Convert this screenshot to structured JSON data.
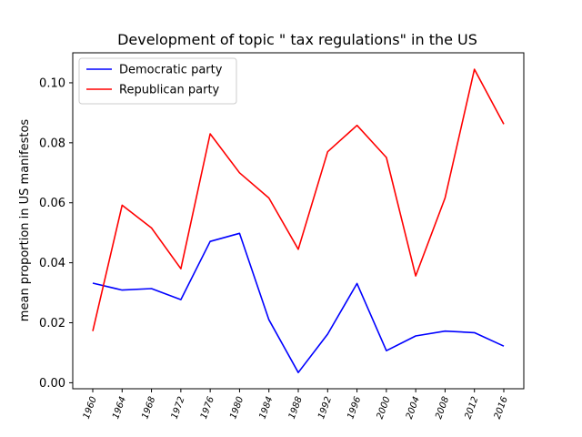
{
  "chart_data": {
    "type": "line",
    "title": "Development of topic \" tax regulations\" in the US",
    "xlabel": "",
    "ylabel": "mean proportion in US manifestos",
    "categories": [
      "1960",
      "1964",
      "1968",
      "1972",
      "1976",
      "1980",
      "1984",
      "1988",
      "1992",
      "1996",
      "2000",
      "2004",
      "2008",
      "2012",
      "2016"
    ],
    "ylim": [
      -0.002,
      0.11
    ],
    "yticks": [
      "0.00",
      "0.02",
      "0.04",
      "0.06",
      "0.08",
      "0.10"
    ],
    "ytick_values": [
      0.0,
      0.02,
      0.04,
      0.06,
      0.08,
      0.1
    ],
    "grid": false,
    "legend_position": "top-left",
    "series": [
      {
        "name": "Democratic party",
        "color": "#0000ff",
        "values": [
          0.0332,
          0.0309,
          0.0314,
          0.0277,
          0.0471,
          0.0498,
          0.021,
          0.0034,
          0.0162,
          0.0331,
          0.0107,
          0.0156,
          0.0172,
          0.0167,
          0.0122
        ]
      },
      {
        "name": "Republican party",
        "color": "#ff0000",
        "values": [
          0.0172,
          0.0592,
          0.0516,
          0.038,
          0.083,
          0.07,
          0.0616,
          0.0445,
          0.077,
          0.0858,
          0.0751,
          0.0356,
          0.0616,
          0.1045,
          0.0862
        ]
      }
    ]
  }
}
